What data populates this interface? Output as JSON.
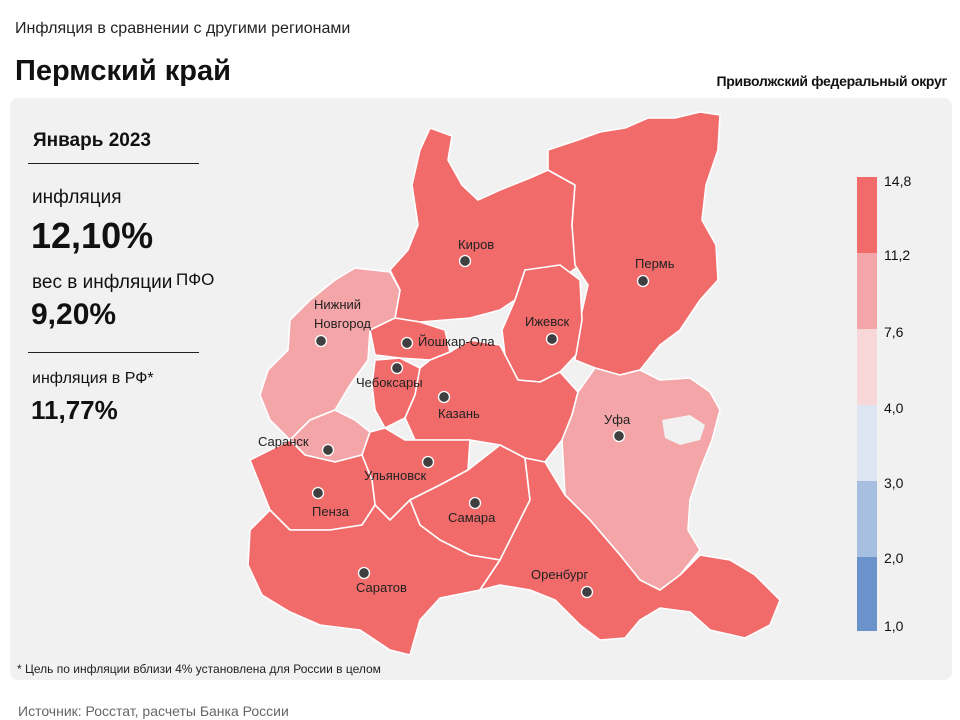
{
  "header": {
    "subtitle": "Инфляция в сравнении с другими регионами",
    "title": "Пермский край",
    "district": "Приволжский федеральный округ"
  },
  "stats": {
    "period": "Январь 2023",
    "inflation_label": "инфляция",
    "inflation_value": "12,10%",
    "weight_label": "вес в инфляции",
    "weight_pfo": "ПФО",
    "weight_value": "9,20%",
    "rf_label": "инфляция  в РФ*",
    "rf_value": "11,77%"
  },
  "footnote": "* Цель по инфляции вблизи 4% установлена для России в целом",
  "source": "Источник: Росстат, расчеты Банка России",
  "legend": {
    "ticks": [
      "14,8",
      "11,2",
      "7,6",
      "4,0",
      "3,0",
      "2,0",
      "1,0"
    ],
    "colors": [
      "#f26b6b",
      "#f4a5a7",
      "#f8d7d9",
      "#dde4f2",
      "#a7bfe0",
      "#6a93cb"
    ]
  },
  "colors": {
    "high": "#f26b6b",
    "mid": "#f4a5a7",
    "panel": "#f1f1f1",
    "border": "#ffffff"
  },
  "cities": [
    {
      "name": "Киров",
      "id": "kirov"
    },
    {
      "name": "Пермь",
      "id": "perm"
    },
    {
      "name": "Ижевск",
      "id": "izhevsk"
    },
    {
      "name": "Нижний",
      "id": "nn1"
    },
    {
      "name": "Новгород",
      "id": "nn2"
    },
    {
      "name": "Йошкар-Ола",
      "id": "yoshkar"
    },
    {
      "name": "Чебоксары",
      "id": "cheb"
    },
    {
      "name": "Казань",
      "id": "kazan"
    },
    {
      "name": "Уфа",
      "id": "ufa"
    },
    {
      "name": "Саранск",
      "id": "saransk"
    },
    {
      "name": "Ульяновск",
      "id": "ulyanovsk"
    },
    {
      "name": "Пенза",
      "id": "penza"
    },
    {
      "name": "Самара",
      "id": "samara"
    },
    {
      "name": "Саратов",
      "id": "saratov"
    },
    {
      "name": "Оренбург",
      "id": "orenburg"
    }
  ]
}
